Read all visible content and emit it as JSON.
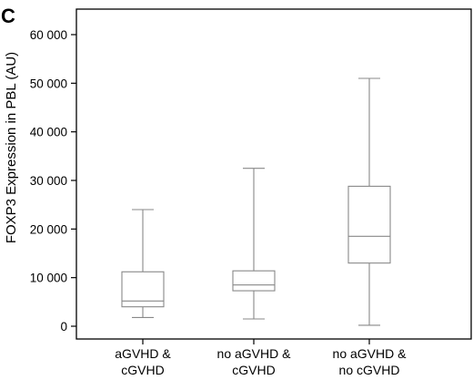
{
  "panel_label": "C",
  "chart_data": {
    "type": "box",
    "title": "",
    "xlabel": "",
    "ylabel": "FOXP3 Expression in  PBL (AU)",
    "ylim": [
      0,
      60000
    ],
    "yticks": [
      0,
      10000,
      20000,
      30000,
      40000,
      50000,
      60000
    ],
    "ytick_labels": [
      "0",
      "10 000",
      "20 000",
      "30 000",
      "40 000",
      "50 000",
      "60 000"
    ],
    "grid": false,
    "categories": [
      [
        "aGVHD &",
        "cGVHD"
      ],
      [
        "no aGVHD &",
        "cGVHD"
      ],
      [
        "no aGVHD &",
        "no cGVHD"
      ]
    ],
    "boxes": [
      {
        "min": 1800,
        "q1": 4000,
        "median": 5200,
        "q3": 11200,
        "max": 24000
      },
      {
        "min": 1500,
        "q1": 7300,
        "median": 8500,
        "q3": 11400,
        "max": 32500
      },
      {
        "min": 200,
        "q1": 13000,
        "median": 18500,
        "q3": 28800,
        "max": 51000
      }
    ],
    "colors": {
      "box_stroke": "#888888",
      "axis": "#000000",
      "box_fill": "#ffffff"
    }
  }
}
